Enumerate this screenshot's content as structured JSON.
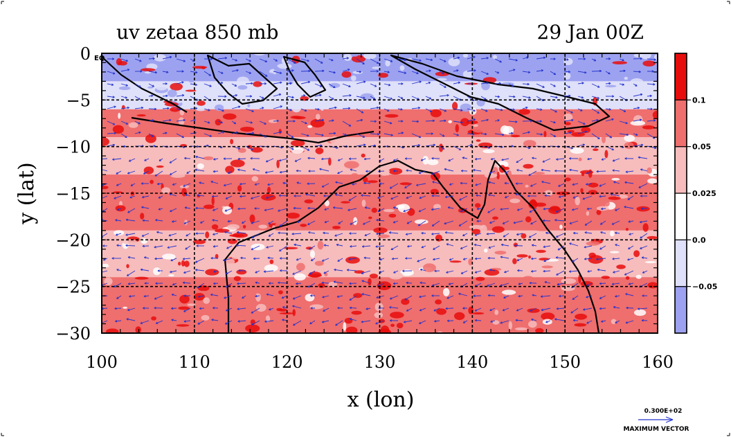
{
  "chart_data": {
    "type": "heatmap",
    "title_left": "uv zetaa 850 mb",
    "title_right": "29 Jan 00Z",
    "xlabel": "x (lon)",
    "ylabel": "y (lat)",
    "xlim": [
      100,
      160
    ],
    "ylim": [
      -30,
      0
    ],
    "x_ticks": [
      "100",
      "110",
      "120",
      "130",
      "140",
      "150",
      "160"
    ],
    "y_ticks": [
      "0",
      "−5",
      "−10",
      "−15",
      "−20",
      "−25",
      "−30"
    ],
    "equator_marker": "EQ",
    "grid": true,
    "colorbar": {
      "bands": [
        {
          "color": "#9da2f0",
          "label": "−0.05"
        },
        {
          "color": "#dfe0f9",
          "label": "0.0"
        },
        {
          "color": "#ffffff",
          "label": "0.025"
        },
        {
          "color": "#f7bcbc",
          "label": "0.05"
        },
        {
          "color": "#ef6e6e",
          "label": "0.1"
        },
        {
          "color": "#e80d0d",
          "label": ""
        }
      ]
    },
    "latitude_bands": [
      {
        "lat_top": 0,
        "lat_bottom": -3,
        "color": "#9da2f0"
      },
      {
        "lat_top": -3,
        "lat_bottom": -6,
        "color": "#dfe0f9"
      },
      {
        "lat_top": -6,
        "lat_bottom": -9,
        "color": "#ef6e6e"
      },
      {
        "lat_top": -9,
        "lat_bottom": -13,
        "color": "#f7bcbc"
      },
      {
        "lat_top": -13,
        "lat_bottom": -19,
        "color": "#ef6e6e"
      },
      {
        "lat_top": -19,
        "lat_bottom": -24,
        "color": "#f7bcbc"
      },
      {
        "lat_top": -24,
        "lat_bottom": -30,
        "color": "#ef6e6e"
      }
    ],
    "vector_legend": {
      "value": "0.300E+02",
      "label": "MAXIMUM VECTOR",
      "color": "#2233cc"
    }
  }
}
